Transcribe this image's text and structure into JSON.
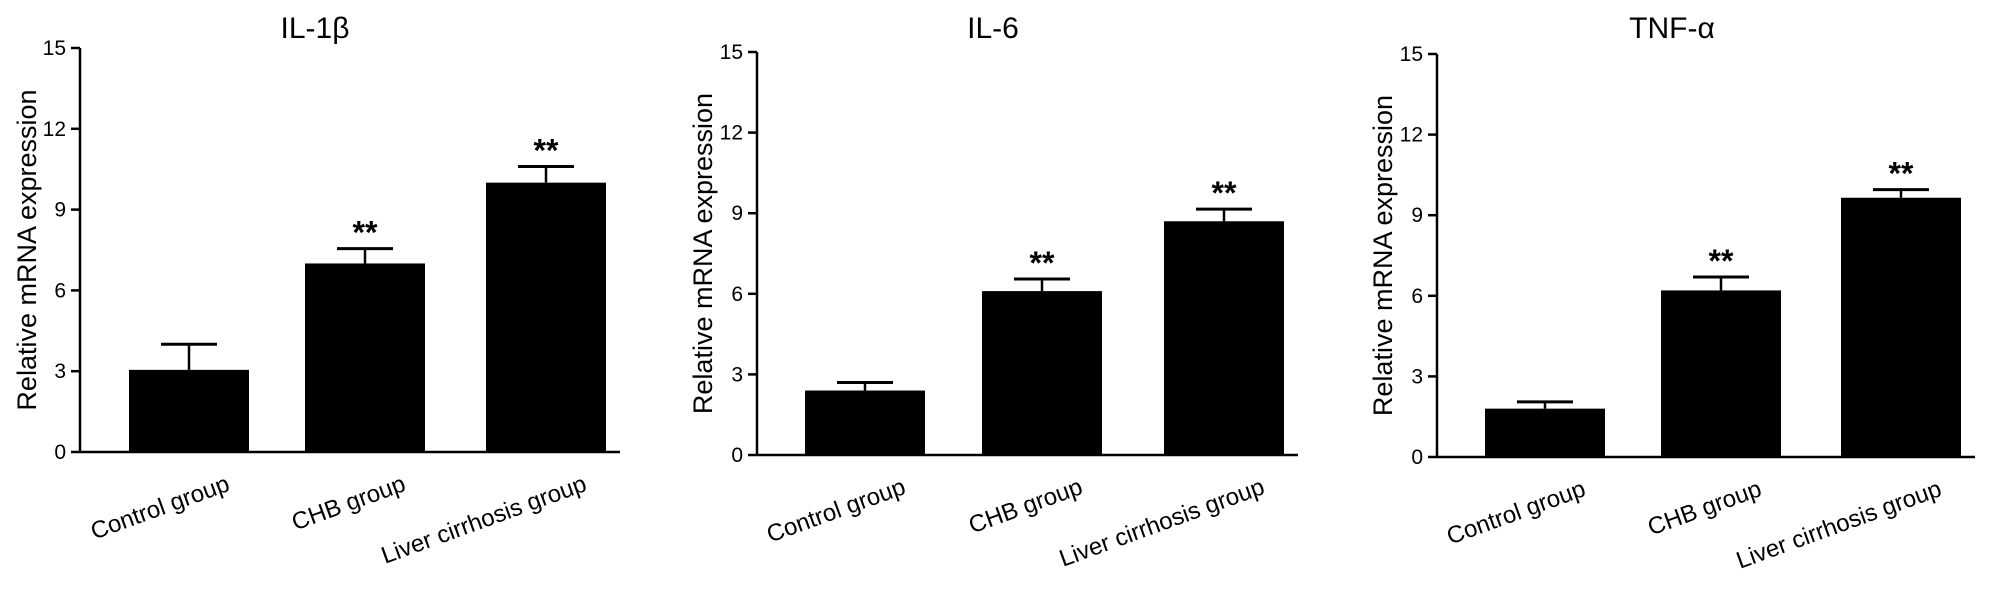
{
  "chart_data": [
    {
      "type": "bar",
      "title": "IL-1β",
      "ylabel": "Relative mRNA expression",
      "xlabel": "",
      "ylim": [
        0,
        15
      ],
      "yticks": [
        "0",
        "3",
        "6",
        "9",
        "12",
        "15"
      ],
      "categories": [
        "Control group",
        "CHB group",
        "Liver cirrhosis group"
      ],
      "values": [
        3.05,
        7.0,
        10.0
      ],
      "errors": [
        0.95,
        0.55,
        0.6
      ],
      "annotations": [
        "",
        "**",
        "**"
      ],
      "bar_color": "#000000"
    },
    {
      "type": "bar",
      "title": "IL-6",
      "ylabel": "Relative mRNA expression",
      "xlabel": "",
      "ylim": [
        0,
        15
      ],
      "yticks": [
        "0",
        "3",
        "6",
        "9",
        "12",
        "15"
      ],
      "categories": [
        "Control group",
        "CHB group",
        "Liver cirrhosis group"
      ],
      "values": [
        2.4,
        6.1,
        8.7
      ],
      "errors": [
        0.3,
        0.45,
        0.45
      ],
      "annotations": [
        "",
        "**",
        "**"
      ],
      "bar_color": "#000000"
    },
    {
      "type": "bar",
      "title": "TNF-α",
      "ylabel": "Relative mRNA expression",
      "xlabel": "",
      "ylim": [
        0,
        15
      ],
      "yticks": [
        "0",
        "3",
        "6",
        "9",
        "12",
        "15"
      ],
      "categories": [
        "Control group",
        "CHB group",
        "Liver cirrhosis group"
      ],
      "values": [
        1.8,
        6.2,
        9.65
      ],
      "errors": [
        0.25,
        0.5,
        0.3
      ],
      "annotations": [
        "",
        "**",
        "**"
      ],
      "bar_color": "#000000"
    }
  ]
}
